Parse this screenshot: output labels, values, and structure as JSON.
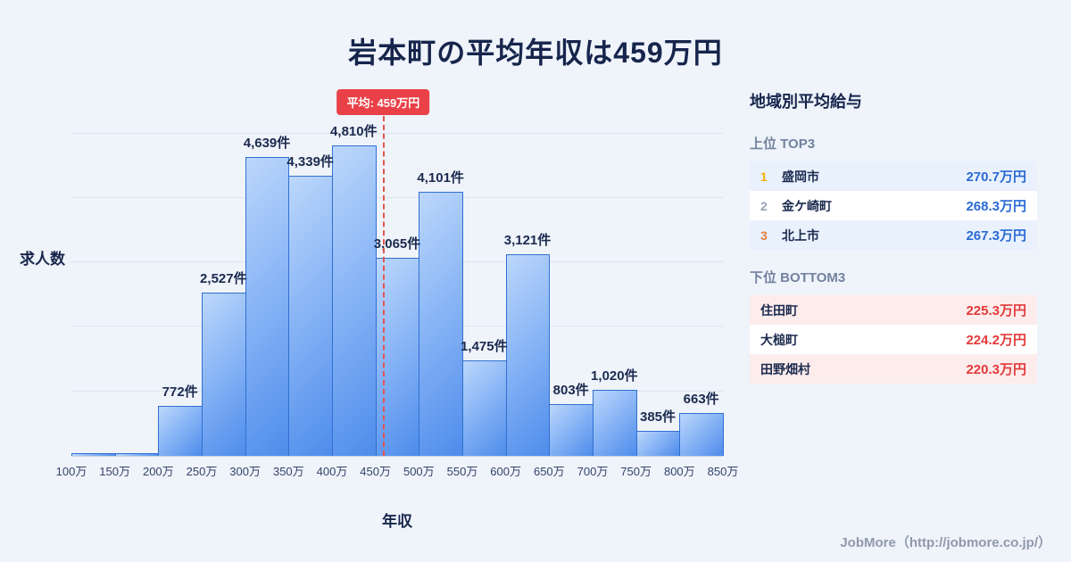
{
  "title": "岩本町の平均年収は459万円",
  "axis": {
    "y_label": "求人数",
    "x_label": "年収"
  },
  "chart_data": {
    "type": "bar",
    "title": "岩本町の平均年収は459万円",
    "xlabel": "年収",
    "ylabel": "求人数",
    "tick_labels": [
      "100万",
      "150万",
      "200万",
      "250万",
      "300万",
      "350万",
      "400万",
      "450万",
      "500万",
      "550万",
      "600万",
      "650万",
      "700万",
      "750万",
      "800万",
      "850万"
    ],
    "categories": [
      "100万-150万",
      "150万-200万",
      "200万-250万",
      "250万-300万",
      "300万-350万",
      "350万-400万",
      "400万-450万",
      "450万-500万",
      "500万-550万",
      "550万-600万",
      "600万-650万",
      "650万-700万",
      "700万-750万",
      "750万-800万",
      "800万-850万"
    ],
    "values": [
      40,
      45,
      772,
      2527,
      4639,
      4339,
      4810,
      3065,
      4101,
      1475,
      3121,
      803,
      1020,
      385,
      663
    ],
    "value_labels": [
      "",
      "",
      "772件",
      "2,527件",
      "4,639件",
      "4,339件",
      "4,810件",
      "3,065件",
      "4,101件",
      "1,475件",
      "3,121件",
      "803件",
      "1,020件",
      "385件",
      "663件"
    ],
    "x_range": [
      100,
      850
    ],
    "ylim": [
      0,
      5700
    ],
    "gridlines": [
      1000,
      2000,
      3000,
      4000,
      5000
    ],
    "grid": true,
    "legend": false,
    "average": {
      "value": 459,
      "label": "平均: 459万円"
    },
    "bar_color_light": "#bcd7fb",
    "bar_color_dark": "#4e8ceb",
    "bar_border_color": "#3070d2",
    "average_line_color": "#e4544e",
    "average_badge_color": "#ea4148"
  },
  "sidebar": {
    "title": "地域別平均給与",
    "top3": {
      "heading": "上位 TOP3",
      "value_color": "#2a6ad4",
      "rows": [
        {
          "rank": "1",
          "name": "盛岡市",
          "value": "270.7万円"
        },
        {
          "rank": "2",
          "name": "金ケ崎町",
          "value": "268.3万円"
        },
        {
          "rank": "3",
          "name": "北上市",
          "value": "267.3万円"
        }
      ]
    },
    "bottom3": {
      "heading": "下位 BOTTOM3",
      "value_color": "#e23a3a",
      "rows": [
        {
          "name": "住田町",
          "value": "225.3万円"
        },
        {
          "name": "大槌町",
          "value": "224.2万円"
        },
        {
          "name": "田野畑村",
          "value": "220.3万円"
        }
      ]
    }
  },
  "footer": {
    "credit": "JobMore（http://jobmore.co.jp/）"
  }
}
